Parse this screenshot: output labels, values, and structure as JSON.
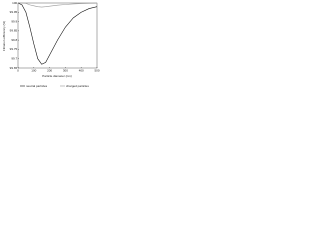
{
  "chart_data": {
    "type": "line",
    "xlabel": "Particle diameter (nm)",
    "ylabel": "Filtration efficiency (%)",
    "x": [
      0,
      25,
      50,
      75,
      100,
      125,
      150,
      175,
      200,
      250,
      300,
      350,
      400,
      450,
      500
    ],
    "series": [
      {
        "name": "neutral particles",
        "color": "#111111",
        "dash": false,
        "values": [
          100,
          99.99,
          99.95,
          99.87,
          99.78,
          99.7,
          99.67,
          99.68,
          99.72,
          99.8,
          99.87,
          99.92,
          99.95,
          99.97,
          99.98
        ]
      },
      {
        "name": "charged particles",
        "color": "#999999",
        "dash": false,
        "values": [
          100,
          100,
          99.998,
          99.99,
          99.985,
          99.98,
          99.978,
          99.98,
          99.983,
          99.988,
          99.992,
          99.995,
          99.997,
          99.998,
          99.999
        ]
      }
    ],
    "xlim": [
      0,
      500
    ],
    "xticks": [
      0,
      100,
      200,
      300,
      400,
      500
    ],
    "ylim": [
      99.65,
      100
    ],
    "yticks": [
      99.65,
      99.7,
      99.75,
      99.8,
      99.85,
      99.9,
      99.95,
      100
    ],
    "grid": false,
    "legend": "bottom"
  }
}
